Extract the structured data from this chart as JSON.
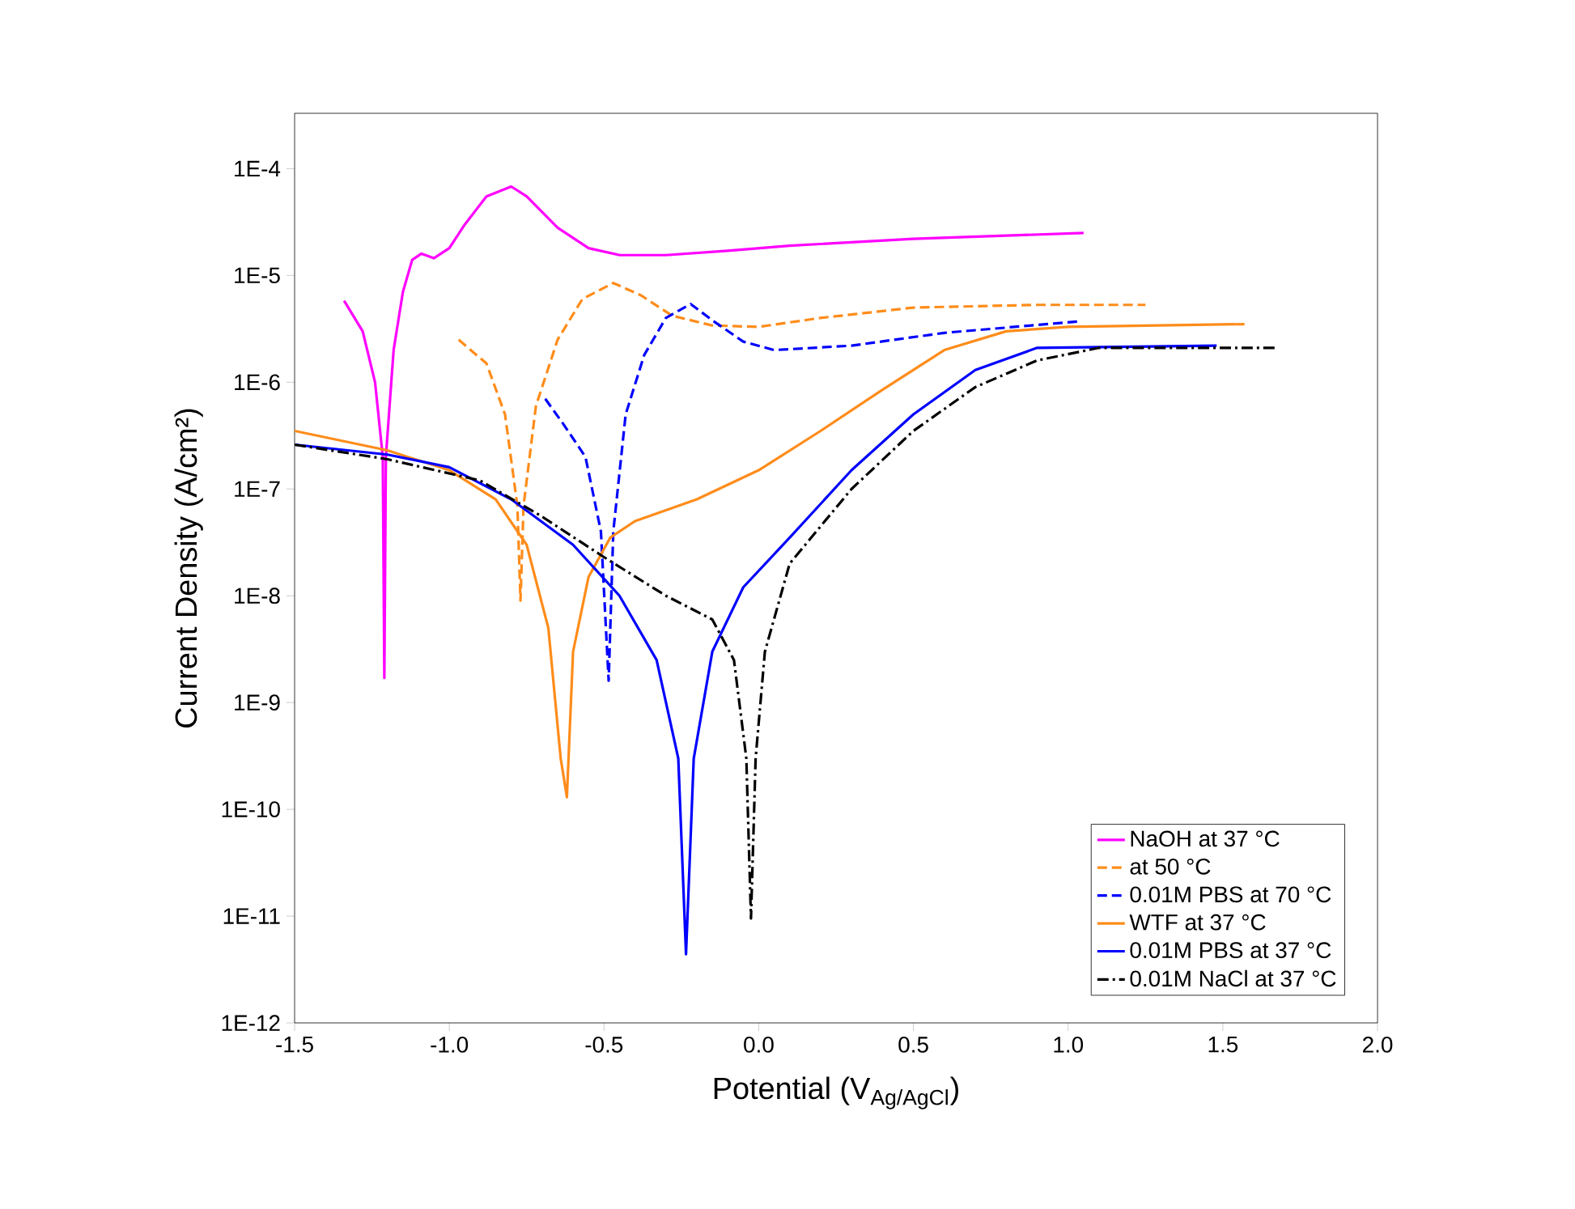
{
  "chart_data": {
    "type": "line",
    "xlabel": "Potential (V$_{Ag/AgCl}$)",
    "ylabel": "Current Density (A/cm²)",
    "log": "y",
    "xlim": [
      -1.5,
      2.0
    ],
    "ylim": [
      1e-12,
      0.00033
    ],
    "xticks": [
      {
        "value": -1.5,
        "label": "-1.5"
      },
      {
        "value": -1.0,
        "label": "-1.0"
      },
      {
        "value": -0.5,
        "label": "-0.5"
      },
      {
        "value": 0.0,
        "label": "0.0"
      },
      {
        "value": 0.5,
        "label": "0.5"
      },
      {
        "value": 1.0,
        "label": "1.0"
      },
      {
        "value": 1.5,
        "label": "1.5"
      },
      {
        "value": 2.0,
        "label": "2.0"
      }
    ],
    "yticks": [
      {
        "value": 1e-12,
        "label": "1E-12"
      },
      {
        "value": 1e-11,
        "label": "1E-11"
      },
      {
        "value": 1e-10,
        "label": "1E-10"
      },
      {
        "value": 1e-09,
        "label": "1E-9"
      },
      {
        "value": 1e-08,
        "label": "1E-8"
      },
      {
        "value": 1e-07,
        "label": "1E-7"
      },
      {
        "value": 1e-06,
        "label": "1E-6"
      },
      {
        "value": 1e-05,
        "label": "1E-5"
      },
      {
        "value": 0.0001,
        "label": "1E-4"
      }
    ],
    "grid": false,
    "legend": "bottom right",
    "marker": "none",
    "series": [
      {
        "name": "NaOH at 37 °C",
        "color": "#ff00ff",
        "line_style": "solid",
        "x": [
          -1.34,
          -1.28,
          -1.24,
          -1.215,
          -1.21,
          -1.205,
          -1.18,
          -1.15,
          -1.12,
          -1.09,
          -1.05,
          -1.0,
          -0.95,
          -0.88,
          -0.8,
          -0.75,
          -0.65,
          -0.55,
          -0.45,
          -0.3,
          -0.1,
          0.1,
          0.5,
          1.05
        ],
        "values": [
          5.8e-06,
          3e-06,
          1e-06,
          2e-07,
          1.7e-09,
          2e-07,
          2e-06,
          7e-06,
          1.4e-05,
          1.6e-05,
          1.45e-05,
          1.8e-05,
          3e-05,
          5.5e-05,
          6.8e-05,
          5.5e-05,
          2.8e-05,
          1.8e-05,
          1.55e-05,
          1.55e-05,
          1.7e-05,
          1.9e-05,
          2.2e-05,
          2.5e-05
        ]
      },
      {
        "name": "at 50 °C",
        "color": "#ff8c1a",
        "line_style": "dashed",
        "x": [
          -0.97,
          -0.88,
          -0.82,
          -0.78,
          -0.77,
          -0.76,
          -0.72,
          -0.65,
          -0.57,
          -0.47,
          -0.38,
          -0.28,
          -0.15,
          0.0,
          0.2,
          0.5,
          0.9,
          1.25
        ],
        "values": [
          2.5e-06,
          1.5e-06,
          5e-07,
          7e-08,
          9e-09,
          7e-08,
          6e-07,
          2.5e-06,
          6e-06,
          8.5e-06,
          6.5e-06,
          4.2e-06,
          3.4e-06,
          3.3e-06,
          4e-06,
          5e-06,
          5.3e-06,
          5.3e-06
        ]
      },
      {
        "name": "0.01M PBS at 70 °C",
        "color": "#0000ff",
        "line_style": "dashed",
        "x": [
          -0.69,
          -0.63,
          -0.56,
          -0.51,
          -0.485,
          -0.47,
          -0.43,
          -0.37,
          -0.3,
          -0.22,
          -0.15,
          -0.05,
          0.05,
          0.3,
          0.6,
          1.03
        ],
        "values": [
          7e-07,
          4e-07,
          2e-07,
          4e-08,
          1.6e-09,
          4e-08,
          5e-07,
          1.8e-06,
          4e-06,
          5.4e-06,
          3.8e-06,
          2.4e-06,
          2e-06,
          2.2e-06,
          2.9e-06,
          3.7e-06
        ]
      },
      {
        "name": "WTF at 37 °C",
        "color": "#ff8c1a",
        "line_style": "solid",
        "x": [
          -1.5,
          -1.2,
          -1.0,
          -0.85,
          -0.75,
          -0.68,
          -0.64,
          -0.62,
          -0.6,
          -0.55,
          -0.48,
          -0.4,
          -0.2,
          0.0,
          0.2,
          0.4,
          0.6,
          0.8,
          1.0,
          1.57
        ],
        "values": [
          3.5e-07,
          2.3e-07,
          1.5e-07,
          8e-08,
          3e-08,
          5e-09,
          3e-10,
          1.3e-10,
          3e-09,
          1.5e-08,
          3.5e-08,
          5e-08,
          8e-08,
          1.5e-07,
          3.5e-07,
          8.5e-07,
          2e-06,
          3e-06,
          3.3e-06,
          3.5e-06
        ]
      },
      {
        "name": "0.01M PBS at 37 °C",
        "color": "#0000ff",
        "line_style": "solid",
        "x": [
          -1.5,
          -1.2,
          -1.0,
          -0.8,
          -0.6,
          -0.45,
          -0.33,
          -0.26,
          -0.235,
          -0.21,
          -0.15,
          -0.05,
          0.1,
          0.3,
          0.5,
          0.7,
          0.9,
          1.48
        ],
        "values": [
          2.6e-07,
          2.1e-07,
          1.6e-07,
          8e-08,
          3e-08,
          1e-08,
          2.5e-09,
          3e-10,
          4.4e-12,
          3e-10,
          3e-09,
          1.2e-08,
          3.5e-08,
          1.5e-07,
          5e-07,
          1.3e-06,
          2.1e-06,
          2.2e-06
        ]
      },
      {
        "name": "0.01M NaCl at 37 °C",
        "color": "#000000",
        "line_style": "dashdot",
        "x": [
          -1.5,
          -1.2,
          -0.9,
          -0.7,
          -0.5,
          -0.3,
          -0.15,
          -0.08,
          -0.04,
          -0.025,
          -0.01,
          0.02,
          0.1,
          0.3,
          0.5,
          0.7,
          0.9,
          1.1,
          1.68
        ],
        "values": [
          2.6e-07,
          1.9e-07,
          1.2e-07,
          5.5e-08,
          2.3e-08,
          1e-08,
          6e-09,
          2.5e-09,
          3e-10,
          9.5e-12,
          3e-10,
          3e-09,
          2e-08,
          1e-07,
          3.5e-07,
          9e-07,
          1.6e-06,
          2.1e-06,
          2.1e-06
        ]
      }
    ]
  }
}
